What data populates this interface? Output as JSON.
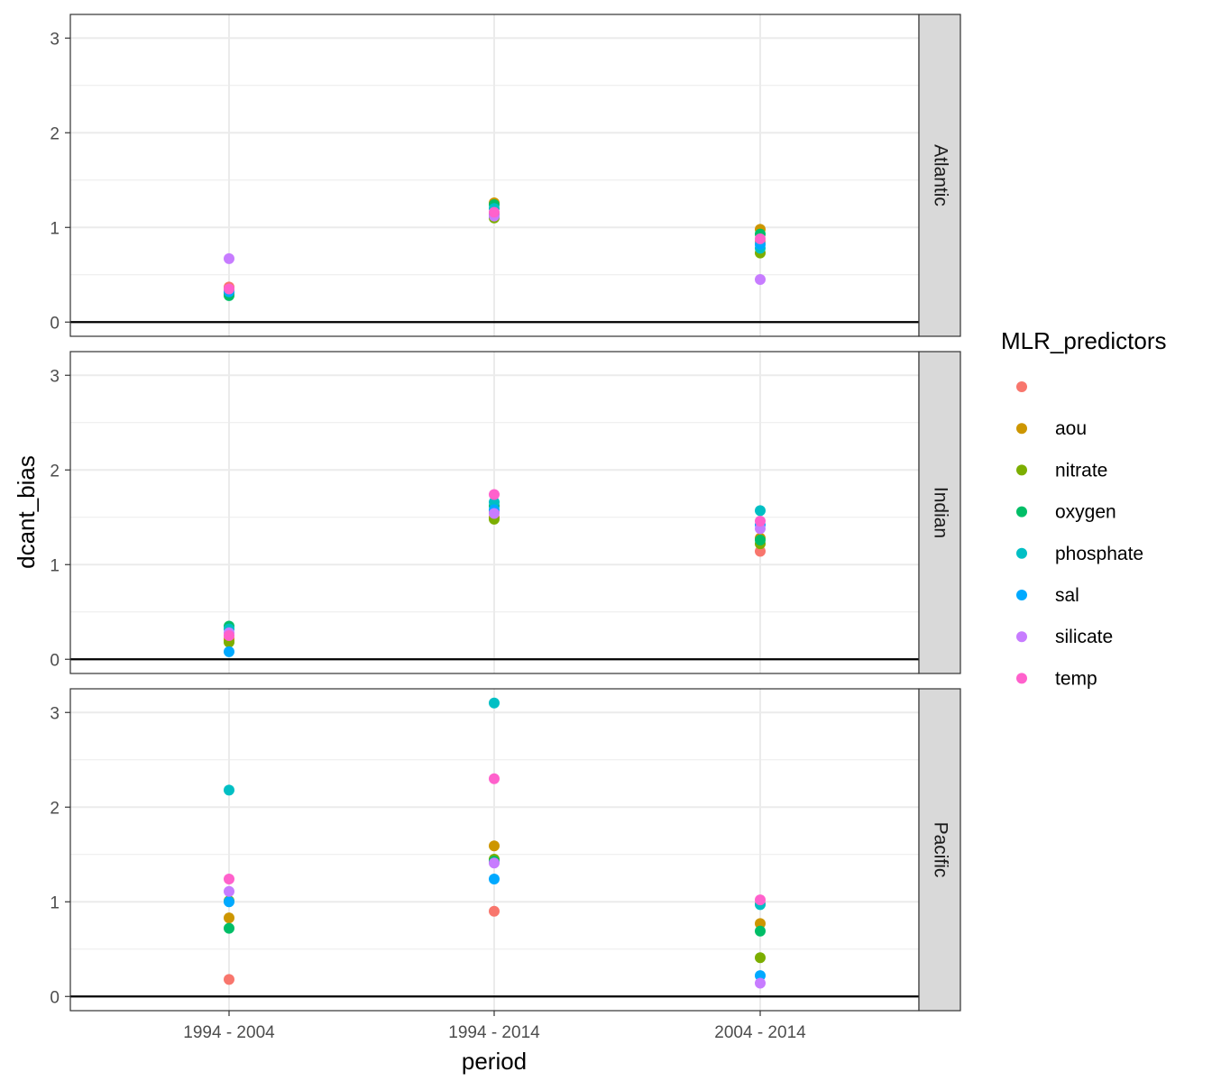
{
  "chart_data": {
    "type": "scatter",
    "facet_by": "basin",
    "facets": [
      "Atlantic",
      "Indian",
      "Pacific"
    ],
    "xlabel": "period",
    "ylabel": "dcant_bias",
    "categories": [
      "1994 - 2004",
      "1994 - 2014",
      "2004 - 2014"
    ],
    "ylim": [
      -0.15,
      3.25
    ],
    "yticks": [
      0,
      1,
      2,
      3
    ],
    "grid": true,
    "hline": 0,
    "legend": {
      "title": "MLR_predictors",
      "placement": "right",
      "entries": [
        {
          "name": "",
          "color": "#F8766D"
        },
        {
          "name": "aou",
          "color": "#CD9600"
        },
        {
          "name": "nitrate",
          "color": "#7CAE00"
        },
        {
          "name": "oxygen",
          "color": "#00BE67"
        },
        {
          "name": "phosphate",
          "color": "#00BFC4"
        },
        {
          "name": "sal",
          "color": "#00A9FF"
        },
        {
          "name": "silicate",
          "color": "#C77CFF"
        },
        {
          "name": "temp",
          "color": "#FF61CC"
        }
      ]
    },
    "series": [
      {
        "facet": "Atlantic",
        "period": "1994 - 2004",
        "predictor": "",
        "value": 0.37
      },
      {
        "facet": "Atlantic",
        "period": "1994 - 2004",
        "predictor": "aou",
        "value": 0.3
      },
      {
        "facet": "Atlantic",
        "period": "1994 - 2004",
        "predictor": "nitrate",
        "value": 0.31
      },
      {
        "facet": "Atlantic",
        "period": "1994 - 2004",
        "predictor": "oxygen",
        "value": 0.28
      },
      {
        "facet": "Atlantic",
        "period": "1994 - 2004",
        "predictor": "phosphate",
        "value": 0.33
      },
      {
        "facet": "Atlantic",
        "period": "1994 - 2004",
        "predictor": "sal",
        "value": 0.32
      },
      {
        "facet": "Atlantic",
        "period": "1994 - 2004",
        "predictor": "silicate",
        "value": 0.67
      },
      {
        "facet": "Atlantic",
        "period": "1994 - 2004",
        "predictor": "temp",
        "value": 0.35
      },
      {
        "facet": "Atlantic",
        "period": "1994 - 2014",
        "predictor": "",
        "value": 1.15
      },
      {
        "facet": "Atlantic",
        "period": "1994 - 2014",
        "predictor": "aou",
        "value": 1.26
      },
      {
        "facet": "Atlantic",
        "period": "1994 - 2014",
        "predictor": "nitrate",
        "value": 1.1
      },
      {
        "facet": "Atlantic",
        "period": "1994 - 2014",
        "predictor": "oxygen",
        "value": 1.24
      },
      {
        "facet": "Atlantic",
        "period": "1994 - 2014",
        "predictor": "phosphate",
        "value": 1.2
      },
      {
        "facet": "Atlantic",
        "period": "1994 - 2014",
        "predictor": "sal",
        "value": 1.13
      },
      {
        "facet": "Atlantic",
        "period": "1994 - 2014",
        "predictor": "silicate",
        "value": 1.12
      },
      {
        "facet": "Atlantic",
        "period": "1994 - 2014",
        "predictor": "temp",
        "value": 1.16
      },
      {
        "facet": "Atlantic",
        "period": "2004 - 2014",
        "predictor": "",
        "value": 0.85
      },
      {
        "facet": "Atlantic",
        "period": "2004 - 2014",
        "predictor": "aou",
        "value": 0.98
      },
      {
        "facet": "Atlantic",
        "period": "2004 - 2014",
        "predictor": "nitrate",
        "value": 0.73
      },
      {
        "facet": "Atlantic",
        "period": "2004 - 2014",
        "predictor": "oxygen",
        "value": 0.93
      },
      {
        "facet": "Atlantic",
        "period": "2004 - 2014",
        "predictor": "phosphate",
        "value": 0.78
      },
      {
        "facet": "Atlantic",
        "period": "2004 - 2014",
        "predictor": "sal",
        "value": 0.82
      },
      {
        "facet": "Atlantic",
        "period": "2004 - 2014",
        "predictor": "silicate",
        "value": 0.45
      },
      {
        "facet": "Atlantic",
        "period": "2004 - 2014",
        "predictor": "temp",
        "value": 0.88
      },
      {
        "facet": "Indian",
        "period": "1994 - 2004",
        "predictor": "",
        "value": 0.22
      },
      {
        "facet": "Indian",
        "period": "1994 - 2004",
        "predictor": "aou",
        "value": 0.2
      },
      {
        "facet": "Indian",
        "period": "1994 - 2004",
        "predictor": "nitrate",
        "value": 0.18
      },
      {
        "facet": "Indian",
        "period": "1994 - 2004",
        "predictor": "oxygen",
        "value": 0.35
      },
      {
        "facet": "Indian",
        "period": "1994 - 2004",
        "predictor": "phosphate",
        "value": 0.32
      },
      {
        "facet": "Indian",
        "period": "1994 - 2004",
        "predictor": "sal",
        "value": 0.08
      },
      {
        "facet": "Indian",
        "period": "1994 - 2004",
        "predictor": "silicate",
        "value": 0.28
      },
      {
        "facet": "Indian",
        "period": "1994 - 2004",
        "predictor": "temp",
        "value": 0.25
      },
      {
        "facet": "Indian",
        "period": "1994 - 2014",
        "predictor": "",
        "value": 1.56
      },
      {
        "facet": "Indian",
        "period": "1994 - 2014",
        "predictor": "aou",
        "value": 1.5
      },
      {
        "facet": "Indian",
        "period": "1994 - 2014",
        "predictor": "nitrate",
        "value": 1.48
      },
      {
        "facet": "Indian",
        "period": "1994 - 2014",
        "predictor": "oxygen",
        "value": 1.62
      },
      {
        "facet": "Indian",
        "period": "1994 - 2014",
        "predictor": "phosphate",
        "value": 1.66
      },
      {
        "facet": "Indian",
        "period": "1994 - 2014",
        "predictor": "sal",
        "value": 1.58
      },
      {
        "facet": "Indian",
        "period": "1994 - 2014",
        "predictor": "silicate",
        "value": 1.54
      },
      {
        "facet": "Indian",
        "period": "1994 - 2014",
        "predictor": "temp",
        "value": 1.74
      },
      {
        "facet": "Indian",
        "period": "2004 - 2014",
        "predictor": "",
        "value": 1.14
      },
      {
        "facet": "Indian",
        "period": "2004 - 2014",
        "predictor": "aou",
        "value": 1.28
      },
      {
        "facet": "Indian",
        "period": "2004 - 2014",
        "predictor": "nitrate",
        "value": 1.22
      },
      {
        "facet": "Indian",
        "period": "2004 - 2014",
        "predictor": "oxygen",
        "value": 1.26
      },
      {
        "facet": "Indian",
        "period": "2004 - 2014",
        "predictor": "phosphate",
        "value": 1.57
      },
      {
        "facet": "Indian",
        "period": "2004 - 2014",
        "predictor": "sal",
        "value": 1.42
      },
      {
        "facet": "Indian",
        "period": "2004 - 2014",
        "predictor": "silicate",
        "value": 1.38
      },
      {
        "facet": "Indian",
        "period": "2004 - 2014",
        "predictor": "temp",
        "value": 1.46
      },
      {
        "facet": "Pacific",
        "period": "1994 - 2004",
        "predictor": "",
        "value": 0.18
      },
      {
        "facet": "Pacific",
        "period": "1994 - 2004",
        "predictor": "aou",
        "value": 0.83
      },
      {
        "facet": "Pacific",
        "period": "1994 - 2004",
        "predictor": "nitrate",
        "value": 1.01
      },
      {
        "facet": "Pacific",
        "period": "1994 - 2004",
        "predictor": "oxygen",
        "value": 0.72
      },
      {
        "facet": "Pacific",
        "period": "1994 - 2004",
        "predictor": "phosphate",
        "value": 2.18
      },
      {
        "facet": "Pacific",
        "period": "1994 - 2004",
        "predictor": "sal",
        "value": 1.0
      },
      {
        "facet": "Pacific",
        "period": "1994 - 2004",
        "predictor": "silicate",
        "value": 1.11
      },
      {
        "facet": "Pacific",
        "period": "1994 - 2004",
        "predictor": "temp",
        "value": 1.24
      },
      {
        "facet": "Pacific",
        "period": "1994 - 2014",
        "predictor": "",
        "value": 0.9
      },
      {
        "facet": "Pacific",
        "period": "1994 - 2014",
        "predictor": "aou",
        "value": 1.59
      },
      {
        "facet": "Pacific",
        "period": "1994 - 2014",
        "predictor": "nitrate",
        "value": 1.45
      },
      {
        "facet": "Pacific",
        "period": "1994 - 2014",
        "predictor": "oxygen",
        "value": 1.43
      },
      {
        "facet": "Pacific",
        "period": "1994 - 2014",
        "predictor": "phosphate",
        "value": 3.1
      },
      {
        "facet": "Pacific",
        "period": "1994 - 2014",
        "predictor": "sal",
        "value": 1.24
      },
      {
        "facet": "Pacific",
        "period": "1994 - 2014",
        "predictor": "silicate",
        "value": 1.41
      },
      {
        "facet": "Pacific",
        "period": "1994 - 2014",
        "predictor": "temp",
        "value": 2.3
      },
      {
        "facet": "Pacific",
        "period": "2004 - 2014",
        "predictor": "",
        "value": 0.98
      },
      {
        "facet": "Pacific",
        "period": "2004 - 2014",
        "predictor": "aou",
        "value": 0.77
      },
      {
        "facet": "Pacific",
        "period": "2004 - 2014",
        "predictor": "nitrate",
        "value": 0.41
      },
      {
        "facet": "Pacific",
        "period": "2004 - 2014",
        "predictor": "oxygen",
        "value": 0.69
      },
      {
        "facet": "Pacific",
        "period": "2004 - 2014",
        "predictor": "phosphate",
        "value": 0.97
      },
      {
        "facet": "Pacific",
        "period": "2004 - 2014",
        "predictor": "sal",
        "value": 0.22
      },
      {
        "facet": "Pacific",
        "period": "2004 - 2014",
        "predictor": "silicate",
        "value": 0.14
      },
      {
        "facet": "Pacific",
        "period": "2004 - 2014",
        "predictor": "temp",
        "value": 1.02
      }
    ]
  }
}
